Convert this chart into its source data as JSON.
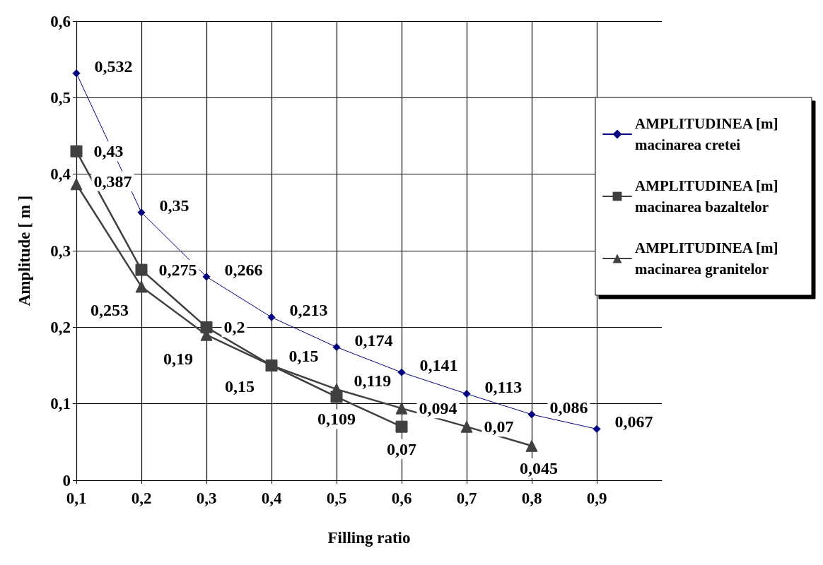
{
  "chart_data": {
    "type": "line",
    "xlabel": "Filling ratio",
    "ylabel": "Amplitude [ m ]",
    "xlim": [
      0.1,
      1.0
    ],
    "xticks": [
      {
        "value": 0.1,
        "label": "0,1"
      },
      {
        "value": 0.2,
        "label": "0,2"
      },
      {
        "value": 0.3,
        "label": "0,3"
      },
      {
        "value": 0.4,
        "label": "0,4"
      },
      {
        "value": 0.5,
        "label": "0,5"
      },
      {
        "value": 0.6,
        "label": "0,6"
      },
      {
        "value": 0.7,
        "label": "0,7"
      },
      {
        "value": 0.8,
        "label": "0,8"
      },
      {
        "value": 0.9,
        "label": "0,9"
      }
    ],
    "ylim": [
      0,
      0.6
    ],
    "yticks": [
      0,
      {
        "value": 0.1,
        "label": "0,1"
      },
      {
        "value": 0.2,
        "label": "0,2"
      },
      {
        "value": 0.3,
        "label": "0,3"
      },
      {
        "value": 0.4,
        "label": "0,4"
      },
      {
        "value": 0.5,
        "label": "0,5"
      },
      {
        "value": 0.6,
        "label": "0,6"
      }
    ],
    "grid": true,
    "legend": "right",
    "series": [
      {
        "name": "AMPLITUDINEA [m] macinarea cretei",
        "color": "#000080",
        "marker": "diamond",
        "x": [
          0.1,
          0.2,
          0.3,
          0.4,
          0.5,
          0.6,
          0.7,
          0.8,
          0.9
        ],
        "values": [
          0.532,
          0.35,
          0.266,
          0.213,
          0.174,
          0.141,
          0.113,
          0.086,
          0.067
        ],
        "value_labels": [
          "0,532",
          "0,35",
          "0,266",
          "0,213",
          "0,174",
          "0,141",
          "0,113",
          "0,086",
          "0,067"
        ]
      },
      {
        "name": "AMPLITUDINEA [m] macinarea bazaltelor",
        "color": "#404040",
        "marker": "square",
        "x": [
          0.1,
          0.2,
          0.3,
          0.4,
          0.5,
          0.6
        ],
        "values": [
          0.43,
          0.275,
          0.2,
          0.15,
          0.109,
          0.07
        ],
        "value_labels": [
          "0,43",
          "0,275",
          "0,2",
          "0,15",
          "0,109",
          "0,07"
        ]
      },
      {
        "name": "AMPLITUDINEA [m] macinarea granitelor",
        "color": "#404040",
        "marker": "triangle",
        "x": [
          0.1,
          0.2,
          0.3,
          0.4,
          0.5,
          0.6,
          0.7,
          0.8
        ],
        "values": [
          0.387,
          0.253,
          0.19,
          0.15,
          0.119,
          0.094,
          0.07,
          0.045
        ],
        "value_labels": [
          "0,387",
          "0,253",
          "0,19",
          "0,15",
          "0,119",
          "0,094",
          "0,07",
          "0,045"
        ]
      }
    ]
  }
}
